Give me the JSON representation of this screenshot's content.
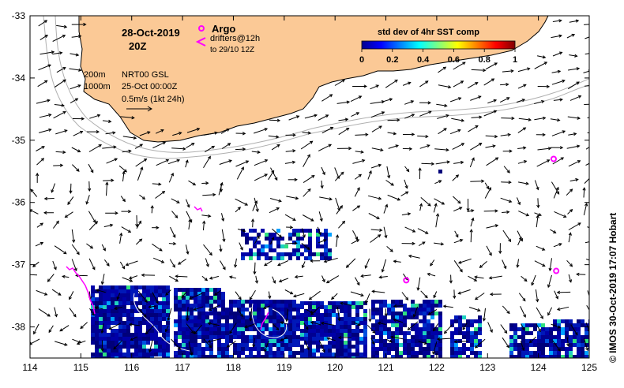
{
  "map": {
    "date": "28-Oct-2019",
    "hour": "20Z",
    "lon_ticks": [
      "114",
      "115",
      "116",
      "117",
      "118",
      "119",
      "120",
      "121",
      "122",
      "123",
      "124",
      "125"
    ],
    "lat_ticks": [
      "-33",
      "-34",
      "-35",
      "-36",
      "-37",
      "-38"
    ],
    "lon_range": [
      114,
      125
    ],
    "lat_range": [
      -38.5,
      -33
    ]
  },
  "legend": {
    "argo_label": "Argo",
    "drifters_label": "drifters@12h",
    "drifters_to": "to 29/10 12Z",
    "depth_200": "200m",
    "depth_1000": "1000m",
    "product": "NRT00 GSL",
    "product_time": "25-Oct 00:00Z",
    "speed_scale": "0.5m/s (1kt 24h)",
    "marker_color": "#ff00ff",
    "land_color": "#fbc996"
  },
  "colorbar": {
    "title": "std dev of 4hr SST comp",
    "ticks": [
      "0",
      "0.2",
      "0.4",
      "0.6",
      "0.8",
      "1"
    ]
  },
  "credit": "© IMOS 30-Oct-2019 17:07 Hobart",
  "argo_floats": [
    {
      "lon": 124.3,
      "lat": -35.3
    },
    {
      "lon": 121.4,
      "lat": -37.25
    },
    {
      "lon": 124.35,
      "lat": -37.1
    }
  ]
}
